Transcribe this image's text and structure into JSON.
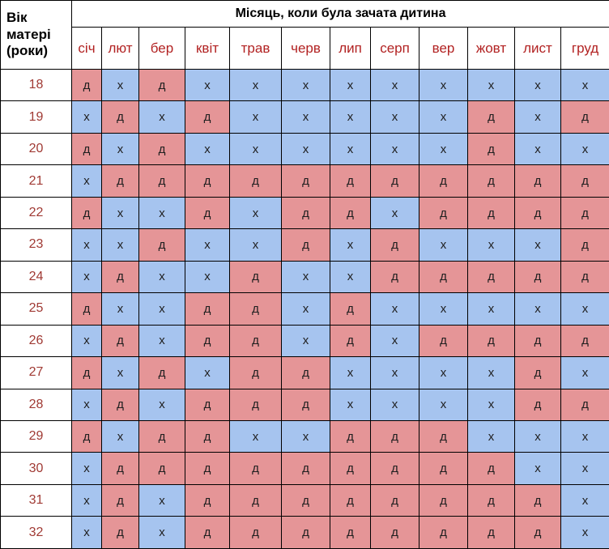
{
  "chart_data": {
    "type": "table",
    "title": "Місяць, коли була зачата дитина",
    "row_header_label": "Вік матері (роки)",
    "columns": [
      "січ",
      "лют",
      "бер",
      "квіт",
      "трав",
      "черв",
      "лип",
      "серп",
      "вер",
      "жовт",
      "лист",
      "груд"
    ],
    "cell_colors": {
      "д": "#e59597",
      "х": "#a6c4ef"
    },
    "text_colors": {
      "month_label": "#b22222",
      "age_label": "#a03a34",
      "title": "#000000",
      "cell_text": "#1f1f1f"
    },
    "rows": [
      {
        "age": "18",
        "cells": [
          "д",
          "х",
          "д",
          "х",
          "х",
          "х",
          "х",
          "х",
          "х",
          "х",
          "х",
          "х"
        ]
      },
      {
        "age": "19",
        "cells": [
          "х",
          "д",
          "х",
          "д",
          "х",
          "х",
          "х",
          "х",
          "х",
          "д",
          "х",
          "д"
        ]
      },
      {
        "age": "20",
        "cells": [
          "д",
          "х",
          "д",
          "х",
          "х",
          "х",
          "х",
          "х",
          "х",
          "д",
          "х",
          "х"
        ]
      },
      {
        "age": "21",
        "cells": [
          "х",
          "д",
          "д",
          "д",
          "д",
          "д",
          "д",
          "д",
          "д",
          "д",
          "д",
          "д"
        ]
      },
      {
        "age": "22",
        "cells": [
          "д",
          "х",
          "х",
          "д",
          "х",
          "д",
          "д",
          "х",
          "д",
          "д",
          "д",
          "д"
        ]
      },
      {
        "age": "23",
        "cells": [
          "х",
          "х",
          "д",
          "х",
          "х",
          "д",
          "х",
          "д",
          "х",
          "х",
          "х",
          "д"
        ]
      },
      {
        "age": "24",
        "cells": [
          "х",
          "д",
          "х",
          "х",
          "д",
          "х",
          "х",
          "д",
          "д",
          "д",
          "д",
          "д"
        ]
      },
      {
        "age": "25",
        "cells": [
          "д",
          "х",
          "х",
          "д",
          "д",
          "х",
          "д",
          "х",
          "х",
          "х",
          "х",
          "х"
        ]
      },
      {
        "age": "26",
        "cells": [
          "х",
          "д",
          "х",
          "д",
          "д",
          "х",
          "д",
          "х",
          "д",
          "д",
          "д",
          "д"
        ]
      },
      {
        "age": "27",
        "cells": [
          "д",
          "х",
          "д",
          "х",
          "д",
          "д",
          "х",
          "х",
          "х",
          "х",
          "д",
          "х"
        ]
      },
      {
        "age": "28",
        "cells": [
          "х",
          "д",
          "х",
          "д",
          "д",
          "д",
          "х",
          "х",
          "х",
          "х",
          "д",
          "д"
        ]
      },
      {
        "age": "29",
        "cells": [
          "д",
          "х",
          "д",
          "д",
          "х",
          "х",
          "д",
          "д",
          "д",
          "х",
          "х",
          "х"
        ]
      },
      {
        "age": "30",
        "cells": [
          "х",
          "д",
          "д",
          "д",
          "д",
          "д",
          "д",
          "д",
          "д",
          "д",
          "х",
          "х"
        ]
      },
      {
        "age": "31",
        "cells": [
          "х",
          "д",
          "х",
          "д",
          "д",
          "д",
          "д",
          "д",
          "д",
          "д",
          "д",
          "х"
        ]
      },
      {
        "age": "32",
        "cells": [
          "х",
          "д",
          "х",
          "д",
          "д",
          "д",
          "д",
          "д",
          "д",
          "д",
          "д",
          "х"
        ]
      }
    ]
  }
}
